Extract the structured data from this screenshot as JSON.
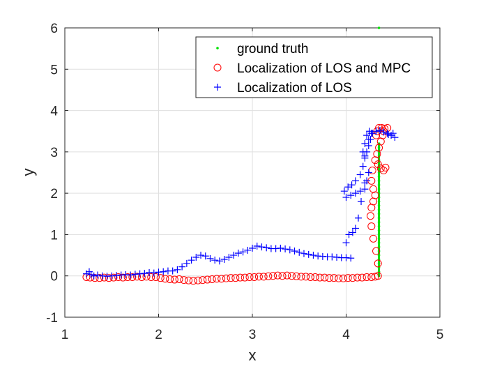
{
  "chart_data": {
    "type": "scatter",
    "xlabel": "x",
    "ylabel": "y",
    "xlim": [
      1,
      5
    ],
    "ylim": [
      -1,
      6
    ],
    "xticks": [
      1,
      2,
      3,
      4,
      5
    ],
    "yticks": [
      -1,
      0,
      1,
      2,
      3,
      4,
      5,
      6
    ],
    "grid": true,
    "legend_position": "top-right",
    "series": [
      {
        "name": "ground truth",
        "marker": "dot",
        "color": "#00e000",
        "x": [
          4.35,
          4.35,
          4.35,
          4.35,
          4.35,
          4.35,
          4.35,
          4.35,
          4.35,
          4.35,
          4.35,
          4.35,
          4.35,
          4.35,
          4.35,
          4.35,
          4.35,
          4.35,
          4.35,
          4.35,
          4.35,
          4.35,
          4.35,
          4.35,
          4.35,
          4.35,
          4.35,
          4.35,
          4.35,
          4.35,
          4.35,
          4.35,
          4.35,
          4.35
        ],
        "y": [
          0.0,
          0.1,
          0.2,
          0.3,
          0.4,
          0.5,
          0.6,
          0.7,
          0.8,
          0.9,
          1.0,
          1.1,
          1.2,
          1.3,
          1.4,
          1.5,
          1.6,
          1.7,
          1.8,
          1.9,
          2.0,
          2.1,
          2.2,
          2.3,
          2.4,
          2.5,
          2.6,
          2.7,
          2.8,
          2.9,
          3.0,
          3.1,
          3.2,
          6.0
        ]
      },
      {
        "name": "Localization of LOS and MPC",
        "marker": "circle",
        "color": "#ff0000",
        "x": [
          1.23,
          1.27,
          1.32,
          1.37,
          1.42,
          1.47,
          1.52,
          1.57,
          1.62,
          1.67,
          1.72,
          1.77,
          1.82,
          1.87,
          1.92,
          1.97,
          2.02,
          2.07,
          2.12,
          2.17,
          2.22,
          2.27,
          2.32,
          2.37,
          2.42,
          2.47,
          2.52,
          2.57,
          2.62,
          2.67,
          2.72,
          2.77,
          2.82,
          2.87,
          2.92,
          2.97,
          3.02,
          3.07,
          3.12,
          3.17,
          3.22,
          3.27,
          3.32,
          3.37,
          3.42,
          3.47,
          3.52,
          3.57,
          3.62,
          3.67,
          3.72,
          3.77,
          3.82,
          3.87,
          3.92,
          3.97,
          4.02,
          4.07,
          4.12,
          4.17,
          4.22,
          4.27,
          4.31,
          4.34,
          4.34,
          4.32,
          4.29,
          4.27,
          4.26,
          4.27,
          4.29,
          4.31,
          4.29,
          4.27,
          4.28,
          4.31,
          4.33,
          4.35,
          4.37,
          4.39,
          4.4,
          4.41,
          4.38,
          4.35,
          4.33,
          4.32,
          4.34,
          4.37,
          4.4,
          4.42,
          4.44
        ],
        "y": [
          -0.03,
          -0.04,
          -0.05,
          -0.05,
          -0.04,
          -0.05,
          -0.04,
          -0.03,
          -0.04,
          -0.03,
          -0.03,
          -0.02,
          -0.03,
          -0.02,
          -0.03,
          -0.03,
          -0.05,
          -0.07,
          -0.08,
          -0.09,
          -0.08,
          -0.1,
          -0.11,
          -0.12,
          -0.11,
          -0.1,
          -0.09,
          -0.08,
          -0.07,
          -0.07,
          -0.06,
          -0.05,
          -0.05,
          -0.04,
          -0.04,
          -0.03,
          -0.03,
          -0.02,
          -0.02,
          -0.01,
          0.0,
          0.01,
          0.0,
          0.01,
          0.0,
          -0.01,
          -0.02,
          -0.02,
          -0.03,
          -0.03,
          -0.04,
          -0.04,
          -0.05,
          -0.05,
          -0.06,
          -0.06,
          -0.05,
          -0.05,
          -0.04,
          -0.04,
          -0.03,
          -0.03,
          -0.02,
          0.0,
          0.3,
          0.6,
          0.9,
          1.2,
          1.45,
          1.65,
          1.8,
          1.95,
          2.1,
          2.3,
          2.55,
          2.8,
          2.95,
          3.1,
          3.25,
          3.4,
          3.5,
          3.56,
          3.58,
          3.58,
          3.5,
          3.4,
          2.7,
          2.6,
          2.55,
          2.62,
          3.58
        ]
      },
      {
        "name": "Localization of LOS",
        "marker": "plus",
        "color": "#0000ff",
        "x": [
          1.23,
          1.26,
          1.28,
          1.31,
          1.35,
          1.4,
          1.45,
          1.5,
          1.55,
          1.6,
          1.65,
          1.7,
          1.75,
          1.8,
          1.85,
          1.9,
          1.95,
          2.0,
          2.05,
          2.1,
          2.15,
          2.2,
          2.25,
          2.3,
          2.35,
          2.4,
          2.45,
          2.5,
          2.55,
          2.6,
          2.65,
          2.7,
          2.75,
          2.8,
          2.85,
          2.9,
          2.95,
          3.0,
          3.05,
          3.1,
          3.15,
          3.2,
          3.25,
          3.3,
          3.35,
          3.4,
          3.45,
          3.5,
          3.55,
          3.6,
          3.65,
          3.7,
          3.75,
          3.8,
          3.85,
          3.9,
          3.95,
          4.0,
          4.05,
          4.0,
          4.03,
          4.07,
          4.1,
          4.13,
          4.16,
          4.2,
          4.22,
          4.24,
          4.2,
          4.15,
          4.1,
          4.05,
          4.0,
          3.98,
          4.02,
          4.06,
          4.1,
          4.15,
          4.18,
          4.2,
          4.22,
          4.24,
          4.26,
          4.27,
          4.25,
          4.22,
          4.2,
          4.18,
          4.2,
          4.24,
          4.28,
          4.32,
          4.36,
          4.4,
          4.44,
          4.48,
          4.52,
          4.45,
          4.5
        ],
        "y": [
          0.05,
          0.1,
          0.03,
          0.0,
          0.02,
          0.0,
          -0.01,
          0.0,
          0.01,
          0.02,
          0.03,
          0.02,
          0.04,
          0.05,
          0.06,
          0.08,
          0.07,
          0.09,
          0.1,
          0.12,
          0.12,
          0.15,
          0.22,
          0.3,
          0.38,
          0.45,
          0.5,
          0.48,
          0.42,
          0.38,
          0.36,
          0.4,
          0.45,
          0.5,
          0.55,
          0.58,
          0.62,
          0.67,
          0.72,
          0.7,
          0.68,
          0.66,
          0.66,
          0.67,
          0.65,
          0.63,
          0.6,
          0.57,
          0.54,
          0.52,
          0.5,
          0.48,
          0.47,
          0.46,
          0.46,
          0.45,
          0.44,
          0.44,
          0.43,
          0.8,
          1.0,
          1.05,
          1.15,
          1.4,
          1.8,
          2.1,
          2.3,
          2.5,
          2.25,
          2.05,
          2.0,
          1.95,
          1.9,
          2.05,
          2.15,
          2.2,
          2.3,
          2.45,
          2.65,
          2.85,
          3.0,
          3.15,
          3.3,
          3.45,
          3.5,
          3.4,
          3.2,
          3.0,
          2.9,
          3.3,
          3.45,
          3.5,
          3.52,
          3.48,
          3.45,
          3.4,
          3.35,
          3.42,
          3.45
        ]
      }
    ]
  }
}
